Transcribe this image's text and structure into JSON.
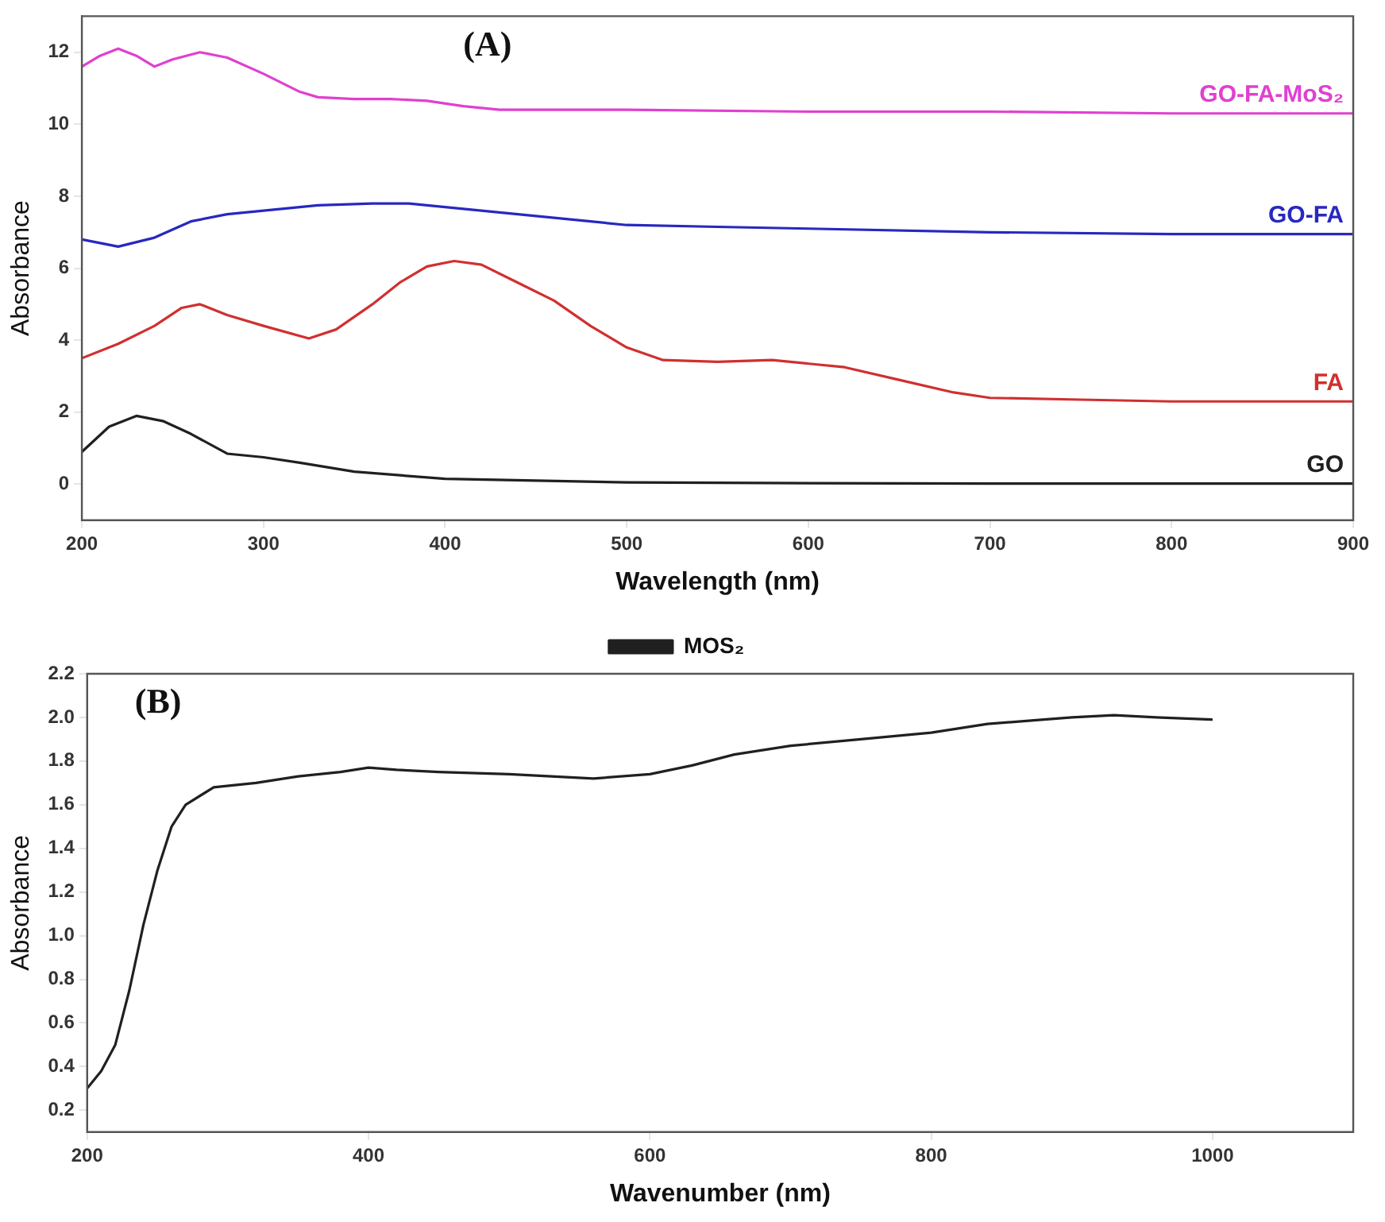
{
  "chart_data": [
    {
      "type": "line",
      "title": "(A)",
      "xlabel": "Wavelength (nm)",
      "ylabel": "Absorbance",
      "xlim": [
        200,
        900
      ],
      "xticks": [
        200,
        300,
        400,
        500,
        600,
        700,
        800,
        900
      ],
      "ylim": [
        -1,
        13
      ],
      "yticks": [
        0,
        2,
        4,
        6,
        8,
        10,
        12
      ],
      "grid": false,
      "legend": false,
      "marker": "none",
      "line_style": "solid",
      "series": [
        {
          "name": "GO-FA-MoS₂",
          "color": "#e040d0",
          "x": [
            200,
            210,
            220,
            230,
            240,
            250,
            265,
            280,
            300,
            320,
            330,
            350,
            370,
            390,
            410,
            430,
            500,
            600,
            700,
            800,
            900
          ],
          "values": [
            11.6,
            11.9,
            12.1,
            11.9,
            11.6,
            11.8,
            12.0,
            11.85,
            11.4,
            10.9,
            10.75,
            10.7,
            10.7,
            10.65,
            10.5,
            10.4,
            10.4,
            10.35,
            10.35,
            10.3,
            10.3
          ]
        },
        {
          "name": "GO-FA",
          "color": "#2828c0",
          "x": [
            200,
            210,
            220,
            240,
            260,
            280,
            300,
            330,
            360,
            380,
            400,
            450,
            500,
            550,
            600,
            700,
            800,
            900
          ],
          "values": [
            6.8,
            6.7,
            6.6,
            6.85,
            7.3,
            7.5,
            7.6,
            7.75,
            7.8,
            7.8,
            7.7,
            7.45,
            7.2,
            7.15,
            7.1,
            7.0,
            6.95,
            6.95
          ]
        },
        {
          "name": "FA",
          "color": "#d03030",
          "x": [
            200,
            220,
            240,
            255,
            265,
            280,
            300,
            325,
            340,
            360,
            375,
            390,
            405,
            420,
            440,
            460,
            480,
            500,
            520,
            550,
            580,
            620,
            650,
            680,
            700,
            750,
            800,
            900
          ],
          "values": [
            3.5,
            3.9,
            4.4,
            4.9,
            5.0,
            4.7,
            4.4,
            4.05,
            4.3,
            5.0,
            5.6,
            6.05,
            6.2,
            6.1,
            5.6,
            5.1,
            4.4,
            3.8,
            3.45,
            3.4,
            3.45,
            3.25,
            2.9,
            2.55,
            2.4,
            2.35,
            2.3,
            2.3
          ]
        },
        {
          "name": "GO",
          "color": "#202020",
          "x": [
            200,
            215,
            230,
            245,
            260,
            280,
            300,
            320,
            350,
            400,
            450,
            500,
            600,
            700,
            900
          ],
          "values": [
            0.9,
            1.6,
            1.9,
            1.75,
            1.4,
            0.85,
            0.75,
            0.6,
            0.35,
            0.15,
            0.1,
            0.05,
            0.03,
            0.02,
            0.02
          ]
        }
      ]
    },
    {
      "type": "line",
      "title": "(B)",
      "xlabel": "Wavenumber (nm)",
      "ylabel": "Absorbance",
      "xlim": [
        200,
        1100
      ],
      "xticks": [
        200,
        400,
        600,
        800,
        1000
      ],
      "ylim": [
        0.1,
        2.2
      ],
      "yticks": [
        0.2,
        0.4,
        0.6,
        0.8,
        {
          "value": 1,
          "label": "1.0"
        },
        1.2,
        1.4,
        1.6,
        1.8,
        {
          "value": 2,
          "label": "2.0"
        },
        2.2
      ],
      "grid": false,
      "legend": "top",
      "marker": "none",
      "line_style": "solid",
      "series": [
        {
          "name": "MOS₂",
          "color": "#202020",
          "x": [
            200,
            210,
            220,
            230,
            240,
            250,
            260,
            270,
            290,
            320,
            350,
            380,
            400,
            420,
            450,
            500,
            560,
            600,
            630,
            660,
            700,
            750,
            800,
            840,
            880,
            900,
            930,
            960,
            1000
          ],
          "values": [
            0.3,
            0.38,
            0.5,
            0.75,
            1.05,
            1.3,
            1.5,
            1.6,
            1.68,
            1.7,
            1.73,
            1.75,
            1.77,
            1.76,
            1.75,
            1.74,
            1.72,
            1.74,
            1.78,
            1.83,
            1.87,
            1.9,
            1.93,
            1.97,
            1.99,
            2.0,
            2.01,
            2.0,
            1.99
          ]
        }
      ]
    }
  ]
}
